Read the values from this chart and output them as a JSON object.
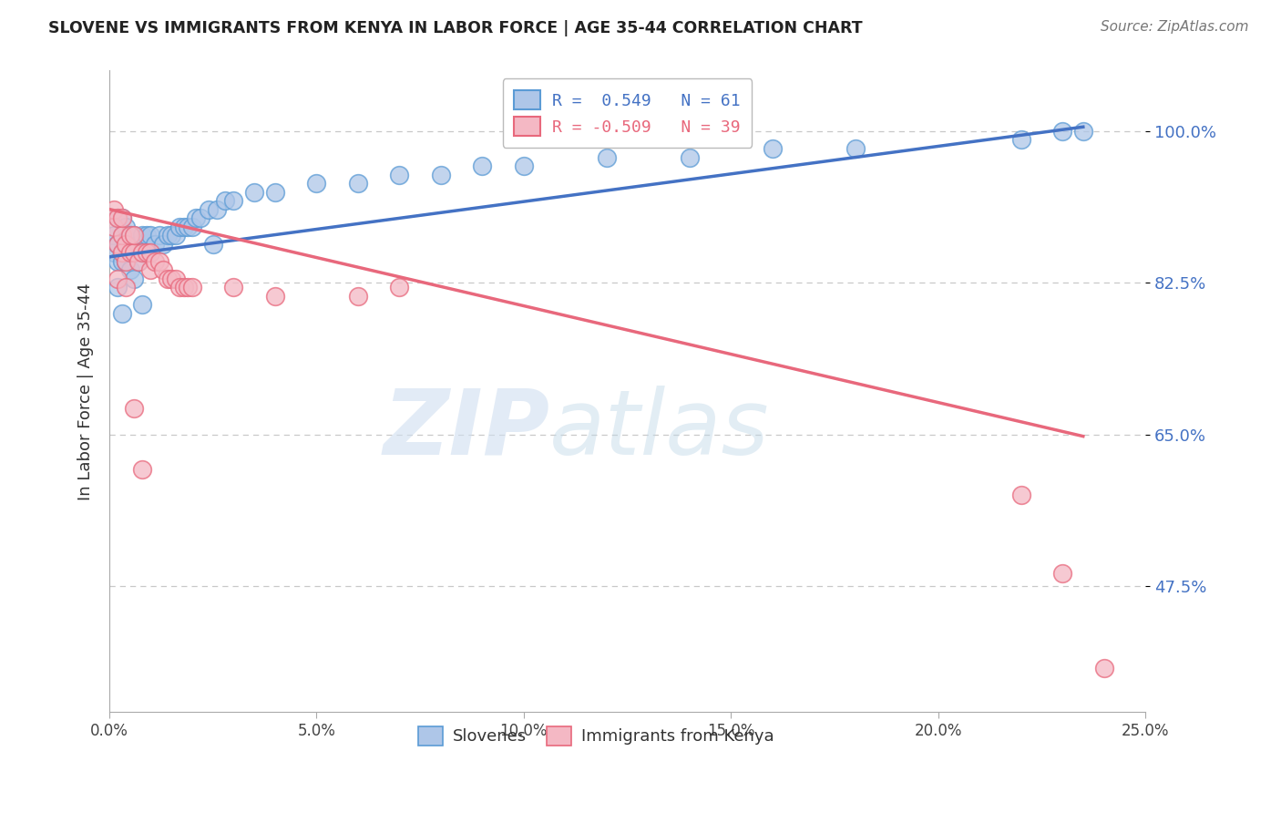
{
  "title": "SLOVENE VS IMMIGRANTS FROM KENYA IN LABOR FORCE | AGE 35-44 CORRELATION CHART",
  "source": "Source: ZipAtlas.com",
  "ylabel": "In Labor Force | Age 35-44",
  "xlim": [
    0.0,
    0.25
  ],
  "ylim": [
    0.33,
    1.07
  ],
  "xticks": [
    0.0,
    0.05,
    0.1,
    0.15,
    0.2,
    0.25
  ],
  "yticks": [
    0.475,
    0.65,
    0.825,
    1.0
  ],
  "ytick_labels": [
    "47.5%",
    "65.0%",
    "82.5%",
    "100.0%"
  ],
  "xtick_labels": [
    "0.0%",
    "5.0%",
    "10.0%",
    "15.0%",
    "20.0%",
    "25.0%"
  ],
  "legend_label_blue": "R =  0.549   N = 61",
  "legend_label_pink": "R = -0.509   N = 39",
  "bottom_legend": [
    "Slovenes",
    "Immigrants from Kenya"
  ],
  "blue_scatter_x": [
    0.001,
    0.001,
    0.002,
    0.002,
    0.002,
    0.003,
    0.003,
    0.003,
    0.003,
    0.004,
    0.004,
    0.004,
    0.005,
    0.005,
    0.005,
    0.006,
    0.006,
    0.007,
    0.007,
    0.008,
    0.008,
    0.009,
    0.009,
    0.01,
    0.01,
    0.011,
    0.012,
    0.013,
    0.014,
    0.015,
    0.016,
    0.017,
    0.018,
    0.019,
    0.02,
    0.021,
    0.022,
    0.024,
    0.026,
    0.028,
    0.03,
    0.035,
    0.04,
    0.05,
    0.06,
    0.07,
    0.08,
    0.09,
    0.1,
    0.12,
    0.14,
    0.16,
    0.18,
    0.22,
    0.23,
    0.235,
    0.002,
    0.003,
    0.006,
    0.008,
    0.025
  ],
  "blue_scatter_y": [
    0.86,
    0.88,
    0.85,
    0.87,
    0.9,
    0.85,
    0.86,
    0.88,
    0.9,
    0.85,
    0.87,
    0.89,
    0.84,
    0.86,
    0.88,
    0.86,
    0.88,
    0.85,
    0.87,
    0.86,
    0.88,
    0.86,
    0.88,
    0.86,
    0.88,
    0.87,
    0.88,
    0.87,
    0.88,
    0.88,
    0.88,
    0.89,
    0.89,
    0.89,
    0.89,
    0.9,
    0.9,
    0.91,
    0.91,
    0.92,
    0.92,
    0.93,
    0.93,
    0.94,
    0.94,
    0.95,
    0.95,
    0.96,
    0.96,
    0.97,
    0.97,
    0.98,
    0.98,
    0.99,
    1.0,
    1.0,
    0.82,
    0.79,
    0.83,
    0.8,
    0.87
  ],
  "pink_scatter_x": [
    0.001,
    0.001,
    0.002,
    0.002,
    0.003,
    0.003,
    0.003,
    0.004,
    0.004,
    0.005,
    0.005,
    0.006,
    0.006,
    0.007,
    0.008,
    0.009,
    0.01,
    0.01,
    0.011,
    0.012,
    0.013,
    0.014,
    0.015,
    0.016,
    0.017,
    0.018,
    0.019,
    0.02,
    0.03,
    0.04,
    0.06,
    0.07,
    0.002,
    0.004,
    0.006,
    0.008,
    0.22,
    0.23,
    0.24
  ],
  "pink_scatter_y": [
    0.89,
    0.91,
    0.87,
    0.9,
    0.86,
    0.88,
    0.9,
    0.85,
    0.87,
    0.86,
    0.88,
    0.86,
    0.88,
    0.85,
    0.86,
    0.86,
    0.84,
    0.86,
    0.85,
    0.85,
    0.84,
    0.83,
    0.83,
    0.83,
    0.82,
    0.82,
    0.82,
    0.82,
    0.82,
    0.81,
    0.81,
    0.82,
    0.83,
    0.82,
    0.68,
    0.61,
    0.58,
    0.49,
    0.38
  ],
  "blue_line_x": [
    0.0,
    0.235
  ],
  "blue_line_y": [
    0.855,
    1.005
  ],
  "pink_line_x": [
    0.0,
    0.235
  ],
  "pink_line_y": [
    0.91,
    0.648
  ],
  "blue_color": "#4472c4",
  "pink_color": "#e8687c",
  "blue_scatter_face": "#aec6e8",
  "pink_scatter_face": "#f4b8c4",
  "blue_edge": "#5b9bd5",
  "pink_edge": "#e8687c",
  "watermark_zip": "ZIP",
  "watermark_atlas": "atlas",
  "background_color": "#ffffff",
  "grid_color": "#c8c8c8"
}
